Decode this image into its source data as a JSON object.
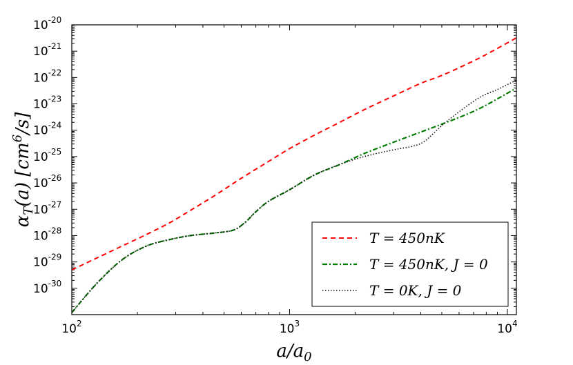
{
  "chart_data": {
    "type": "line",
    "title": "",
    "xlabel": "a/a₀",
    "ylabel": "αT(a) [cm⁶/s]",
    "x_scale": "log",
    "y_scale": "log",
    "xlim": [
      100,
      11000
    ],
    "ylim": [
      1e-31,
      1e-20
    ],
    "x_ticks": [
      {
        "value": 100,
        "base": "10",
        "exp": "2"
      },
      {
        "value": 1000,
        "base": "10",
        "exp": "3"
      },
      {
        "value": 10000,
        "base": "10",
        "exp": "4"
      }
    ],
    "y_ticks": [
      {
        "value": 1e-20,
        "base": "10",
        "exp": "-20"
      },
      {
        "value": 1e-21,
        "base": "10",
        "exp": "-21"
      },
      {
        "value": 1e-22,
        "base": "10",
        "exp": "-22"
      },
      {
        "value": 1e-23,
        "base": "10",
        "exp": "-23"
      },
      {
        "value": 1e-24,
        "base": "10",
        "exp": "-24"
      },
      {
        "value": 1e-25,
        "base": "10",
        "exp": "-25"
      },
      {
        "value": 1e-26,
        "base": "10",
        "exp": "-26"
      },
      {
        "value": 1e-27,
        "base": "10",
        "exp": "-27"
      },
      {
        "value": 1e-28,
        "base": "10",
        "exp": "-28"
      },
      {
        "value": 1e-29,
        "base": "10",
        "exp": "-29"
      },
      {
        "value": 1e-30,
        "base": "10",
        "exp": "-30"
      }
    ],
    "legend_position": "bottom-right",
    "series": [
      {
        "name": "T = 450nK",
        "color": "#ff0000",
        "dash": "dashed",
        "x": [
          100,
          130,
          170,
          220,
          280,
          350,
          450,
          600,
          800,
          1000,
          1300,
          1700,
          2200,
          3000,
          4000,
          5000,
          6500,
          8000,
          11000
        ],
        "y": [
          5e-30,
          1.4e-29,
          4e-29,
          1.1e-28,
          3e-28,
          9e-28,
          3.2e-27,
          1.5e-26,
          6.5e-26,
          2e-25,
          6.5e-25,
          2e-24,
          6e-24,
          2e-23,
          6e-23,
          1.2e-22,
          3.2e-22,
          7.5e-22,
          3.2e-21
        ]
      },
      {
        "name": "T = 450nK,  J = 0",
        "color": "#007a00",
        "dash": "dashdot",
        "x": [
          100,
          130,
          170,
          220,
          280,
          350,
          450,
          550,
          620,
          700,
          800,
          1000,
          1300,
          1700,
          2200,
          3000,
          4000,
          5000,
          6500,
          8000,
          11000
        ],
        "y": [
          1.2e-31,
          1.5e-30,
          1.2e-29,
          4e-29,
          7e-29,
          1e-28,
          1.25e-28,
          1.6e-28,
          3e-28,
          8e-28,
          2e-27,
          5.5e-27,
          2e-26,
          5e-26,
          1.3e-25,
          3.5e-25,
          8.5e-25,
          1.7e-24,
          4e-24,
          9e-24,
          4e-23
        ]
      },
      {
        "name": "T = 0K,  J = 0",
        "color": "#111111",
        "dash": "dotted",
        "x": [
          100,
          130,
          170,
          220,
          280,
          350,
          450,
          550,
          620,
          700,
          800,
          1000,
          1300,
          1700,
          2200,
          3000,
          3700,
          4200,
          5000,
          6000,
          7500,
          9000,
          11000
        ],
        "y": [
          1.2e-31,
          1.5e-30,
          1.2e-29,
          4e-29,
          7e-29,
          1e-28,
          1.25e-28,
          1.6e-28,
          3e-28,
          8e-28,
          2e-27,
          5.5e-27,
          2e-26,
          5e-26,
          1e-25,
          1.8e-25,
          2.5e-25,
          4e-25,
          1.5e-24,
          5e-24,
          1.8e-23,
          3.5e-23,
          8e-23
        ]
      }
    ]
  }
}
